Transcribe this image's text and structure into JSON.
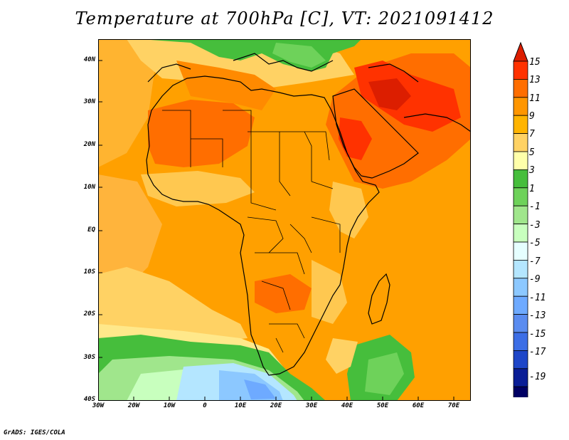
{
  "title": "Temperature at 700hPa [C], VT: 2021091412",
  "credit": "GrADS: IGES/COLA",
  "lat_ticks": [
    "40N",
    "30N",
    "20N",
    "10N",
    "EQ",
    "10S",
    "20S",
    "30S",
    "40S"
  ],
  "lon_ticks": [
    "30W",
    "20W",
    "10W",
    "0",
    "10E",
    "20E",
    "30E",
    "40E",
    "50E",
    "60E",
    "70E"
  ],
  "colorbar": {
    "labels": [
      "15",
      "13",
      "11",
      "9",
      "7",
      "5",
      "3",
      "1",
      "-1",
      "-3",
      "-5",
      "-7",
      "-9",
      "-11",
      "-13",
      "-15",
      "-17",
      "-19"
    ],
    "colors": [
      "#ff3200",
      "#ff6e00",
      "#ff9600",
      "#ffb400",
      "#ffd264",
      "#ffffaa",
      "#46be3c",
      "#6ed25a",
      "#a0e68c",
      "#c8ffbe",
      "#e6ffff",
      "#b4e6ff",
      "#8cc8ff",
      "#6eaaff",
      "#5a8cf0",
      "#3c6ee6",
      "#1e46c8",
      "#0a1e96",
      "#000064"
    ],
    "top_arrow_color": "#dc1e00",
    "bottom_arrow_color": "#e6e6ff"
  }
}
